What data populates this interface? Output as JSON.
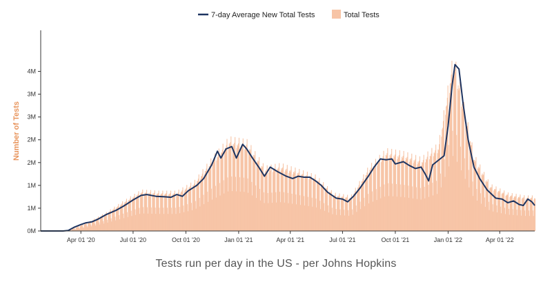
{
  "caption": "Tests run per day in the US - per Johns Hopkins",
  "chart_data": {
    "type": "bar",
    "title": "",
    "xlabel": "",
    "ylabel": "Number of Tests",
    "ylim": [
      0,
      4400000
    ],
    "y_ticks": [
      {
        "value": 0,
        "label": "0M"
      },
      {
        "value": 500000,
        "label": "1M"
      },
      {
        "value": 1000000,
        "label": "1M"
      },
      {
        "value": 1500000,
        "label": "2M"
      },
      {
        "value": 2000000,
        "label": "2M"
      },
      {
        "value": 2500000,
        "label": "3M"
      },
      {
        "value": 3000000,
        "label": "3M"
      },
      {
        "value": 3500000,
        "label": "4M"
      }
    ],
    "x_domain": [
      "2020-01-22",
      "2022-06-01"
    ],
    "x_ticks": [
      {
        "date": "2020-04-01",
        "label": "Apr 01 '20"
      },
      {
        "date": "2020-07-01",
        "label": "Jul 01 '20"
      },
      {
        "date": "2020-10-01",
        "label": "Oct 01 '20"
      },
      {
        "date": "2021-01-01",
        "label": "Jan 01 '21"
      },
      {
        "date": "2021-04-01",
        "label": "Apr 01 '21"
      },
      {
        "date": "2021-07-01",
        "label": "Jul 01 '21"
      },
      {
        "date": "2021-10-01",
        "label": "Oct 01 '21"
      },
      {
        "date": "2022-01-01",
        "label": "Jan 01 '22"
      },
      {
        "date": "2022-04-01",
        "label": "Apr 01 '22"
      }
    ],
    "grid": false,
    "legend_position": "top-center",
    "series": [
      {
        "name": "7-day Average New Total Tests",
        "kind": "line",
        "color": "#1d3461",
        "points": [
          [
            "2020-01-22",
            0
          ],
          [
            "2020-03-01",
            0
          ],
          [
            "2020-03-10",
            10000
          ],
          [
            "2020-03-20",
            80000
          ],
          [
            "2020-04-01",
            140000
          ],
          [
            "2020-04-10",
            180000
          ],
          [
            "2020-04-20",
            200000
          ],
          [
            "2020-05-01",
            260000
          ],
          [
            "2020-05-15",
            360000
          ],
          [
            "2020-06-01",
            450000
          ],
          [
            "2020-06-15",
            550000
          ],
          [
            "2020-07-01",
            680000
          ],
          [
            "2020-07-15",
            780000
          ],
          [
            "2020-07-25",
            800000
          ],
          [
            "2020-08-10",
            760000
          ],
          [
            "2020-08-25",
            750000
          ],
          [
            "2020-09-05",
            740000
          ],
          [
            "2020-09-15",
            800000
          ],
          [
            "2020-09-25",
            760000
          ],
          [
            "2020-10-05",
            880000
          ],
          [
            "2020-10-20",
            1000000
          ],
          [
            "2020-11-01",
            1150000
          ],
          [
            "2020-11-15",
            1450000
          ],
          [
            "2020-11-25",
            1750000
          ],
          [
            "2020-12-01",
            1600000
          ],
          [
            "2020-12-10",
            1800000
          ],
          [
            "2020-12-20",
            1850000
          ],
          [
            "2020-12-28",
            1600000
          ],
          [
            "2021-01-08",
            1900000
          ],
          [
            "2021-01-15",
            1800000
          ],
          [
            "2021-01-25",
            1600000
          ],
          [
            "2021-02-05",
            1400000
          ],
          [
            "2021-02-15",
            1200000
          ],
          [
            "2021-02-25",
            1400000
          ],
          [
            "2021-03-10",
            1300000
          ],
          [
            "2021-03-25",
            1200000
          ],
          [
            "2021-04-05",
            1150000
          ],
          [
            "2021-04-15",
            1200000
          ],
          [
            "2021-04-25",
            1180000
          ],
          [
            "2021-05-05",
            1180000
          ],
          [
            "2021-05-15",
            1100000
          ],
          [
            "2021-05-25",
            1000000
          ],
          [
            "2021-06-05",
            850000
          ],
          [
            "2021-06-20",
            720000
          ],
          [
            "2021-07-01",
            700000
          ],
          [
            "2021-07-10",
            640000
          ],
          [
            "2021-07-20",
            760000
          ],
          [
            "2021-08-01",
            950000
          ],
          [
            "2021-08-15",
            1200000
          ],
          [
            "2021-08-25",
            1400000
          ],
          [
            "2021-09-05",
            1580000
          ],
          [
            "2021-09-15",
            1560000
          ],
          [
            "2021-09-25",
            1580000
          ],
          [
            "2021-10-01",
            1470000
          ],
          [
            "2021-10-15",
            1520000
          ],
          [
            "2021-10-25",
            1440000
          ],
          [
            "2021-11-05",
            1370000
          ],
          [
            "2021-11-15",
            1400000
          ],
          [
            "2021-11-22",
            1250000
          ],
          [
            "2021-11-28",
            1100000
          ],
          [
            "2021-12-05",
            1450000
          ],
          [
            "2021-12-15",
            1550000
          ],
          [
            "2021-12-25",
            1650000
          ],
          [
            "2022-01-01",
            2300000
          ],
          [
            "2022-01-08",
            3200000
          ],
          [
            "2022-01-13",
            3650000
          ],
          [
            "2022-01-20",
            3550000
          ],
          [
            "2022-01-27",
            2800000
          ],
          [
            "2022-02-05",
            2000000
          ],
          [
            "2022-02-15",
            1400000
          ],
          [
            "2022-02-25",
            1150000
          ],
          [
            "2022-03-10",
            900000
          ],
          [
            "2022-03-25",
            720000
          ],
          [
            "2022-04-05",
            700000
          ],
          [
            "2022-04-15",
            620000
          ],
          [
            "2022-04-25",
            660000
          ],
          [
            "2022-05-05",
            580000
          ],
          [
            "2022-05-12",
            560000
          ],
          [
            "2022-05-20",
            700000
          ],
          [
            "2022-05-27",
            640000
          ],
          [
            "2022-06-01",
            560000
          ]
        ]
      },
      {
        "name": "Total Tests",
        "kind": "bar",
        "color": "#f7c4a6",
        "note": "daily totals follow the 7-day average with strong weekly oscillation",
        "points": [
          [
            "2020-03-15",
            30000
          ],
          [
            "2020-04-15",
            160000
          ],
          [
            "2020-05-15",
            320000
          ],
          [
            "2020-06-15",
            520000
          ],
          [
            "2020-07-15",
            700000
          ],
          [
            "2020-08-15",
            680000
          ],
          [
            "2020-09-15",
            680000
          ],
          [
            "2020-10-15",
            850000
          ],
          [
            "2020-11-15",
            1250000
          ],
          [
            "2020-12-15",
            1600000
          ],
          [
            "2021-01-15",
            1550000
          ],
          [
            "2021-02-15",
            1100000
          ],
          [
            "2021-03-15",
            1150000
          ],
          [
            "2021-04-15",
            1050000
          ],
          [
            "2021-05-15",
            950000
          ],
          [
            "2021-06-15",
            650000
          ],
          [
            "2021-07-15",
            600000
          ],
          [
            "2021-08-15",
            1100000
          ],
          [
            "2021-09-15",
            1400000
          ],
          [
            "2021-10-15",
            1350000
          ],
          [
            "2021-11-15",
            1250000
          ],
          [
            "2021-12-15",
            1500000
          ],
          [
            "2022-01-10",
            3050000
          ],
          [
            "2022-02-15",
            1300000
          ],
          [
            "2022-03-15",
            800000
          ],
          [
            "2022-04-15",
            650000
          ],
          [
            "2022-05-15",
            600000
          ]
        ]
      }
    ]
  }
}
